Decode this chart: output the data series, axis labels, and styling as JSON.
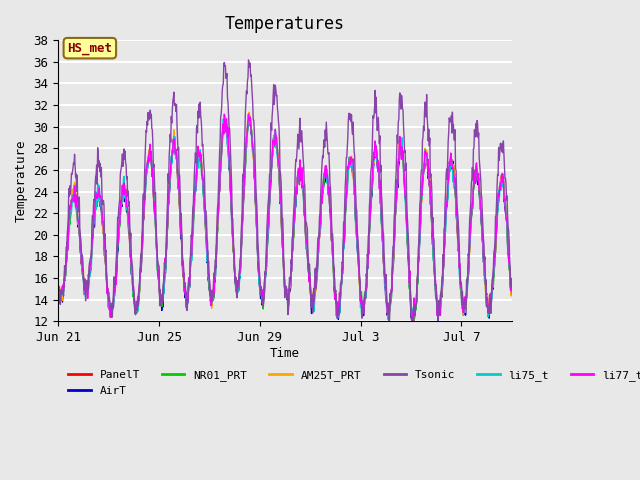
{
  "title": "Temperatures",
  "xlabel": "Time",
  "ylabel": "Temperature",
  "ylim": [
    12,
    38
  ],
  "yticks": [
    12,
    14,
    16,
    18,
    20,
    22,
    24,
    26,
    28,
    30,
    32,
    34,
    36,
    38
  ],
  "xtick_labels": [
    "Jun 21",
    "Jun 25",
    "Jun 29",
    "Jul 3",
    "Jul 7"
  ],
  "xtick_positions": [
    0,
    4,
    8,
    12,
    16
  ],
  "annotation_text": "HS_met",
  "annotation_color": "#8B0000",
  "annotation_bg": "#FFFF99",
  "annotation_border": "#8B6914",
  "series_colors": {
    "PanelT": "#FF0000",
    "AirT": "#0000CC",
    "NR01_PRT": "#00CC00",
    "AM25T_PRT": "#FFA500",
    "Tsonic": "#8844AA",
    "li75_t": "#00CCCC",
    "li77_temp": "#FF00FF"
  },
  "bg_color": "#E8E8E8",
  "plot_bg_color": "#E8E8E8",
  "grid_color": "#FFFFFF",
  "n_days": 18,
  "n_points_per_day": 48
}
